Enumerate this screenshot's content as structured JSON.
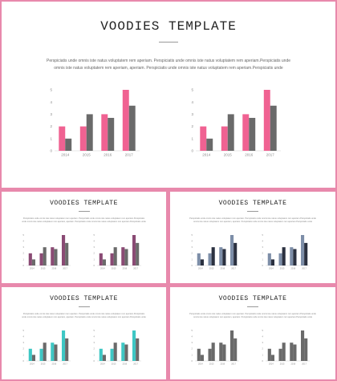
{
  "colors": {
    "border": "#e889ac",
    "pink": "#f06292",
    "gray": "#6a6a6a",
    "purple": "#8a4a74",
    "blue_gray": "#7d8ea8",
    "navy": "#2b3140",
    "teal": "#3ec7c4"
  },
  "slides": [
    {
      "id": "main",
      "title": "VOODIES TEMPLATE",
      "body": "Perspiciatis unde omnis iste natus voluptatem rem aperiam. Perspiciatis unde omnis iste natus voluptatem rem aperiam.Perspiciatis unde omnis iste natus voluptatem rem aperiam, aperiam. Perspiciatis unde omnis iste natus voluptatem rem aperiam.Perspiciatis unde",
      "series_colors": [
        "#f06292",
        "#6a6a6a"
      ]
    },
    {
      "id": "a",
      "title": "VOODIES TEMPLATE",
      "body": "Perspiciatis unde omnis iste natus voluptatem rem aperiam. Perspiciatis unde omnis iste natus voluptatem rem aperiam.Perspiciatis unde omnis iste natus voluptatem rem aperiam, aperiam. Perspiciatis unde omnis iste natus voluptatem rem aperiam.Perspiciatis unde",
      "series_colors": [
        "#8a4a74",
        "#6a6a6a"
      ]
    },
    {
      "id": "b",
      "title": "VOODIES TEMPLATE",
      "body": "Perspiciatis unde omnis iste natus voluptatem rem aperiam. Perspiciatis unde omnis iste natus voluptatem rem aperiam.Perspiciatis unde omnis iste natus voluptatem rem aperiam, aperiam. Perspiciatis unde omnis iste natus voluptatem rem aperiam.Perspiciatis unde",
      "series_colors": [
        "#7d8ea8",
        "#2b3140"
      ]
    },
    {
      "id": "c",
      "title": "VOODIES TEMPLATE",
      "body": "Perspiciatis unde omnis iste natus voluptatem rem aperiam. Perspiciatis unde omnis iste natus voluptatem rem aperiam.Perspiciatis unde omnis iste natus voluptatem rem aperiam, aperiam. Perspiciatis unde omnis iste natus voluptatem rem aperiam.Perspiciatis unde",
      "series_colors": [
        "#3ec7c4",
        "#6a6a6a"
      ]
    },
    {
      "id": "d",
      "title": "VOODIES TEMPLATE",
      "body": "Perspiciatis unde omnis iste natus voluptatem rem aperiam. Perspiciatis unde omnis iste natus voluptatem rem aperiam.Perspiciatis unde omnis iste natus voluptatem rem aperiam, aperiam. Perspiciatis unde omnis iste natus voluptatem rem aperiam.Perspiciatis unde",
      "series_colors": [
        "#6a6a6a",
        "#6a6a6a"
      ]
    }
  ],
  "chart_data": {
    "type": "bar",
    "categories": [
      "2014",
      "2015",
      "2016",
      "2017"
    ],
    "series": [
      {
        "values": [
          2,
          2,
          3,
          5
        ]
      },
      {
        "values": [
          1,
          3,
          2.7,
          3.7
        ]
      }
    ],
    "ylim": [
      0,
      5
    ],
    "yticks": [
      "0",
      "1",
      "2",
      "3",
      "4",
      "5"
    ],
    "grid": false
  }
}
